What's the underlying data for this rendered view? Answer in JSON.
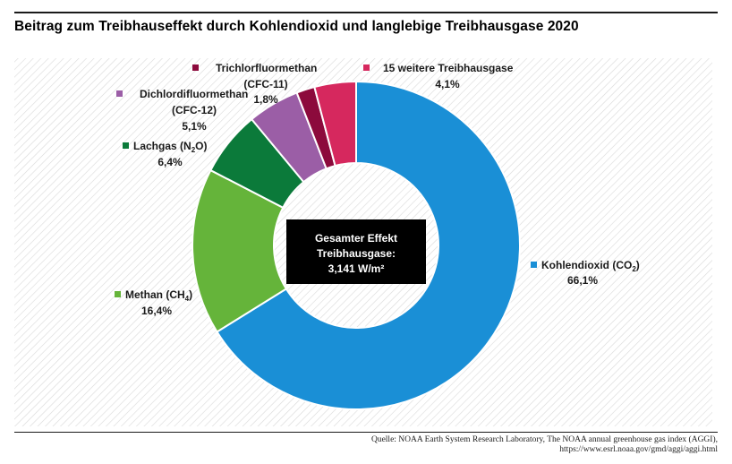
{
  "header": {
    "title": "Beitrag zum Treibhauseffekt durch Kohlendioxid und langlebige Treibhausgase 2020"
  },
  "footer": {
    "source_line1": "Quelle: NOAA Earth System Research Laboratory, The NOAA annual greenhouse gas index (AGGI),",
    "source_line2": "https://www.esrl.noaa.gov/gmd/aggi/aggi.html"
  },
  "center": {
    "line1": "Gesamter Effekt",
    "line2": "Treibhausgase:",
    "line3": "3,141 W/m²"
  },
  "chart_data": {
    "type": "pie",
    "variant": "donut",
    "title": "Beitrag zum Treibhauseffekt durch Kohlendioxid und langlebige Treibhausgase 2020",
    "categories": [
      "Kohlendioxid (CO2)",
      "Methan (CH4)",
      "Lachgas (N2O)",
      "Dichlordifluormethan (CFC-12)",
      "Trichlorfluormethan (CFC-11)",
      "15 weitere Treibhausgase"
    ],
    "values": [
      66.1,
      16.4,
      6.4,
      5.1,
      1.8,
      4.1
    ],
    "value_labels": [
      "66,1%",
      "16,4%",
      "6,4%",
      "5,1%",
      "1,8%",
      "4,1%"
    ],
    "colors": [
      "#1a8fd6",
      "#65b43a",
      "#0b7a3a",
      "#9b5ea6",
      "#8c0a3c",
      "#d6285e"
    ],
    "legend_placement": "labels around slices"
  }
}
